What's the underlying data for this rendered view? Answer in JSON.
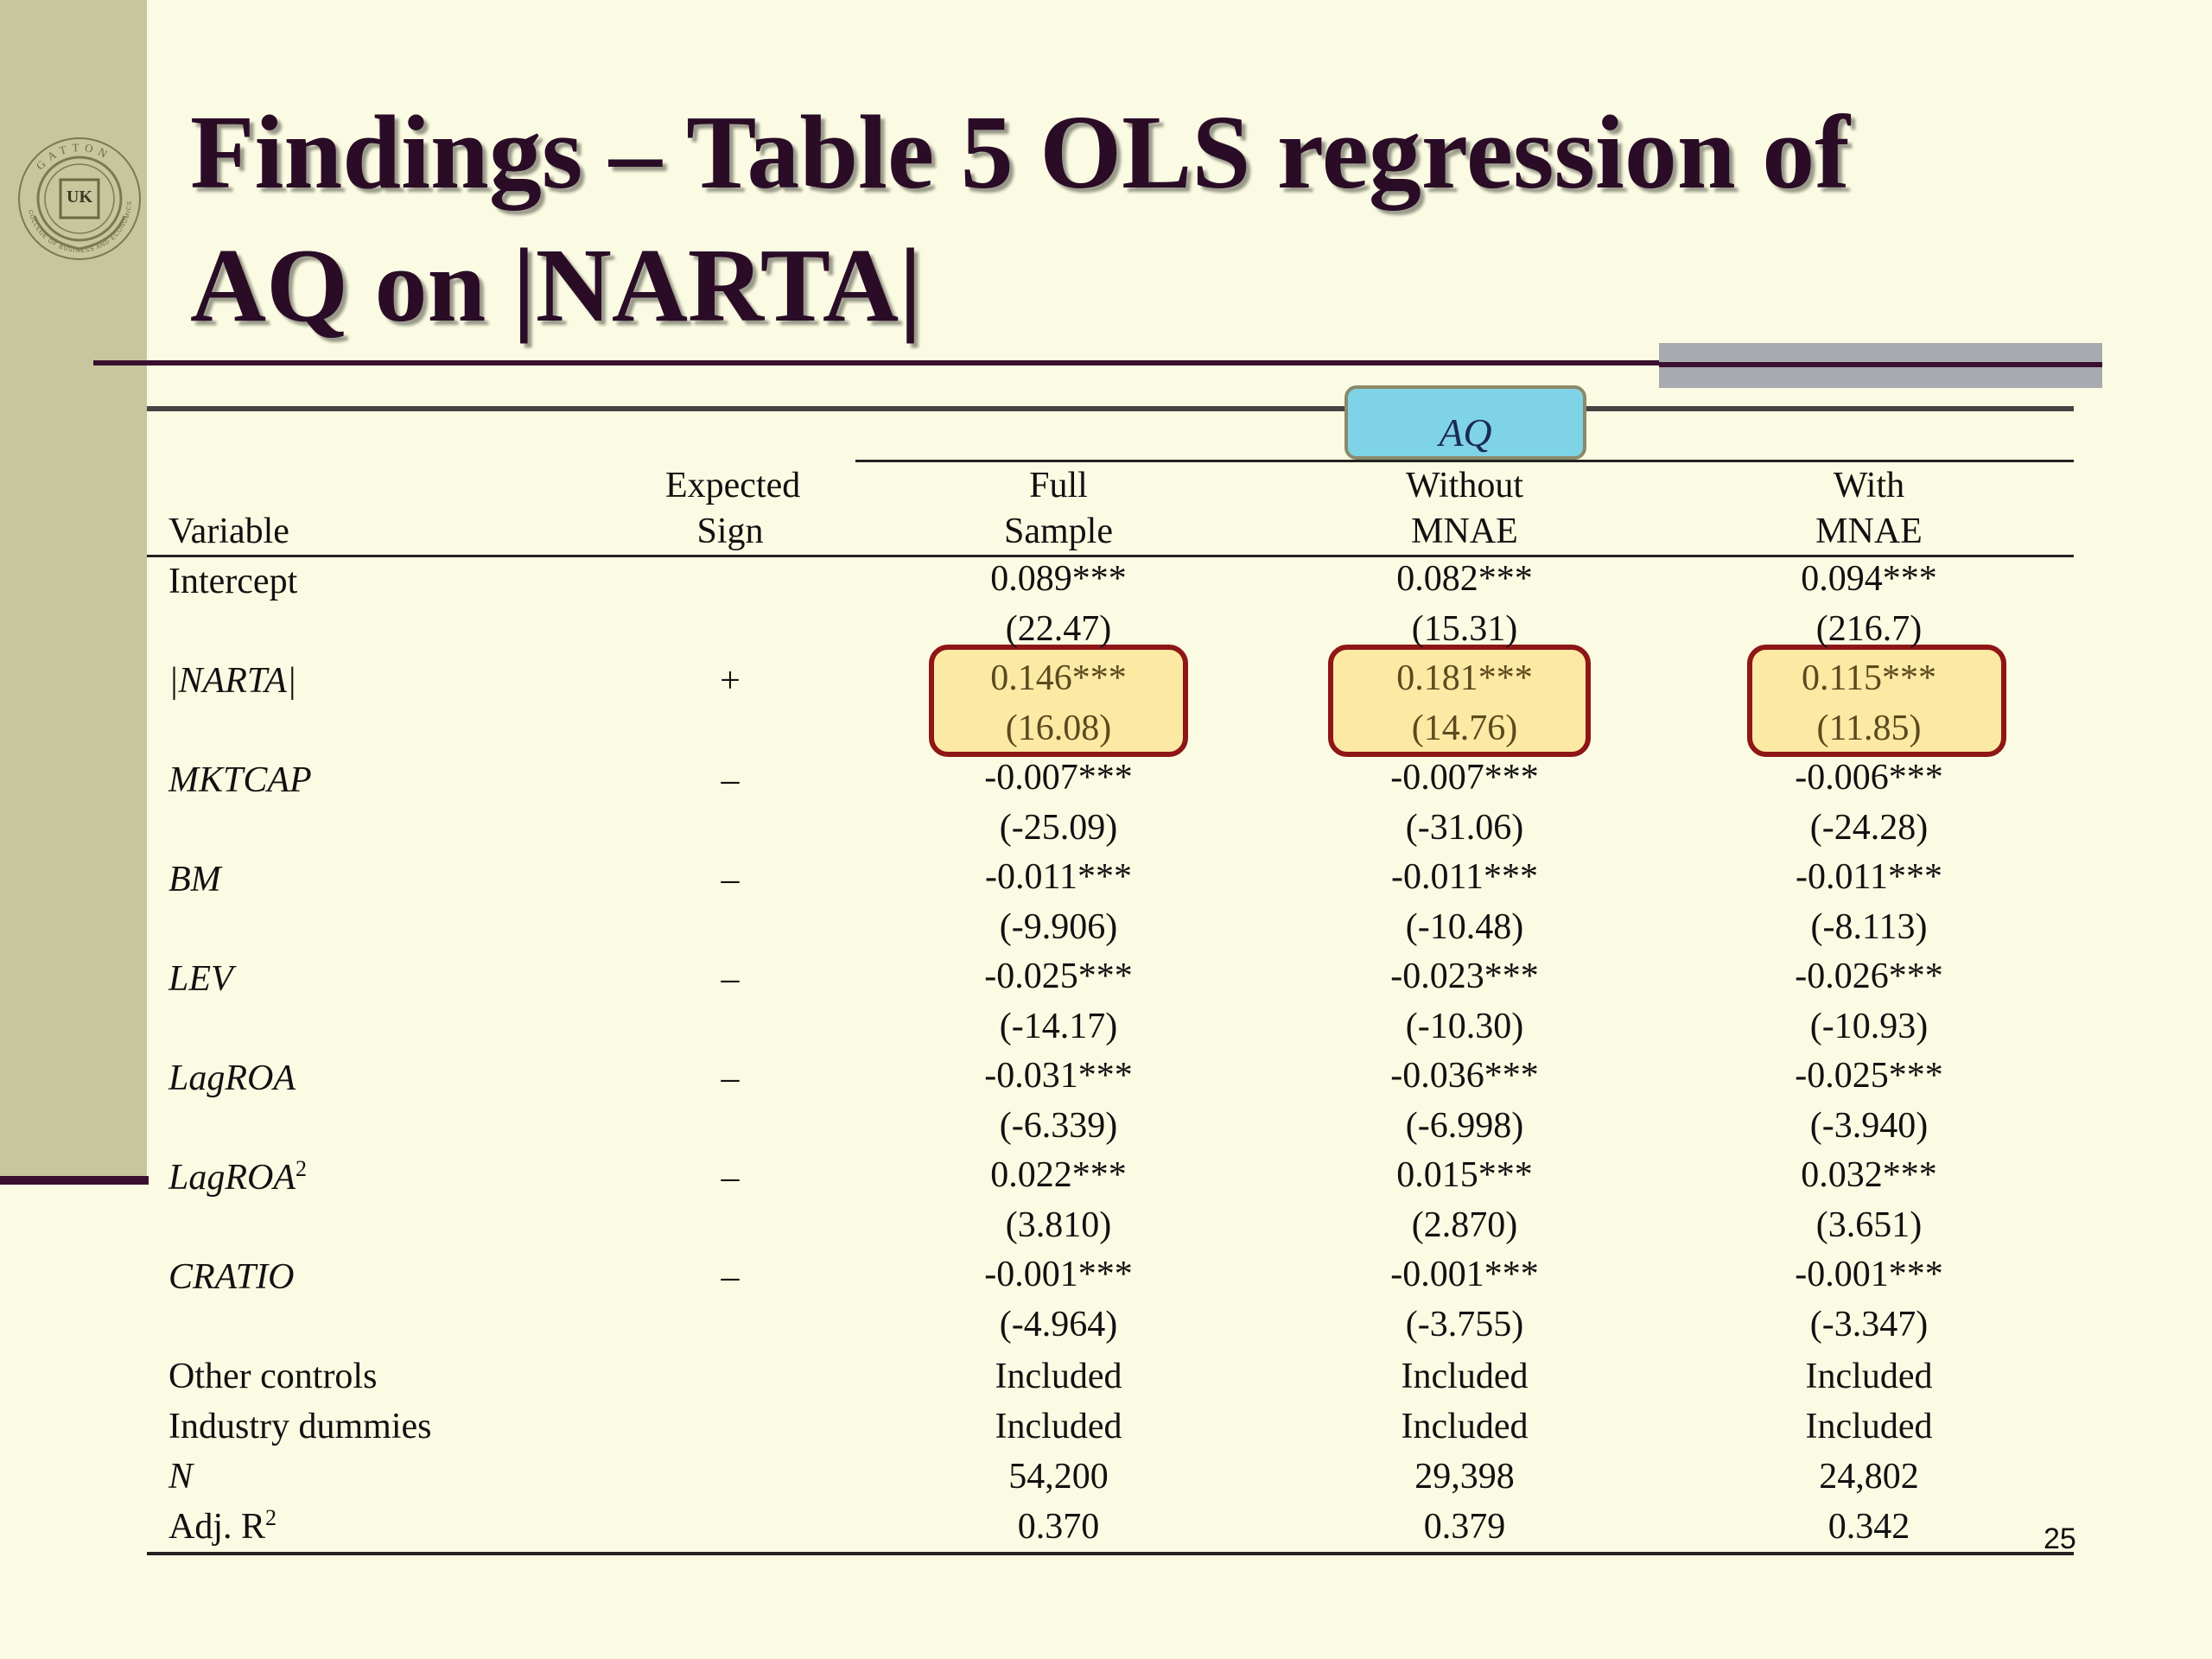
{
  "slide": {
    "title_line1": "Findings – Table 5 OLS regression of",
    "title_line2": "AQ on |NARTA|",
    "logo_top_text": "GATTON",
    "logo_ring_text": "COLLEGE OF BUSINESS AND ECONOMICS",
    "logo_center_text": "UK",
    "page_number": "25",
    "colors": {
      "background": "#fbfbe3",
      "sidebar": "#c8c69d",
      "title": "#2a0c27",
      "accent_line": "#3a0f30",
      "aq_highlight": "#7fd3e6",
      "cell_highlight": "#fce9a3",
      "cell_highlight_border": "#8e1616"
    }
  },
  "table": {
    "group_header": "AQ",
    "headers": {
      "variable": "Variable",
      "sign_line1": "Expected",
      "sign_line2": "Sign",
      "col1_line1": "Full",
      "col1_line2": "Sample",
      "col2_line1": "Without",
      "col2_line2": "MNAE",
      "col3_line1": "With",
      "col3_line2": "MNAE"
    },
    "rows": [
      {
        "variable": "Intercept",
        "sign": "",
        "coef": [
          "0.089***",
          "0.082***",
          "0.094***"
        ],
        "tstat": [
          "(22.47)",
          "(15.31)",
          "(216.7)"
        ]
      },
      {
        "variable": "|NARTA|",
        "sign": "+",
        "coef": [
          "0.146***",
          "0.181***",
          "0.115***"
        ],
        "tstat": [
          "(16.08)",
          "(14.76)",
          "(11.85)"
        ]
      },
      {
        "variable": "MKTCAP",
        "sign": "–",
        "coef": [
          "-0.007***",
          "-0.007***",
          "-0.006***"
        ],
        "tstat": [
          "(-25.09)",
          "(-31.06)",
          "(-24.28)"
        ]
      },
      {
        "variable": "BM",
        "sign": "–",
        "coef": [
          "-0.011***",
          "-0.011***",
          "-0.011***"
        ],
        "tstat": [
          "(-9.906)",
          "(-10.48)",
          "(-8.113)"
        ]
      },
      {
        "variable": "LEV",
        "sign": "–",
        "coef": [
          "-0.025***",
          "-0.023***",
          "-0.026***"
        ],
        "tstat": [
          "(-14.17)",
          "(-10.30)",
          "(-10.93)"
        ]
      },
      {
        "variable": "LagROA",
        "sign": "–",
        "coef": [
          "-0.031***",
          "-0.036***",
          "-0.025***"
        ],
        "tstat": [
          "(-6.339)",
          "(-6.998)",
          "(-3.940)"
        ]
      },
      {
        "variable": "LagROA",
        "variable_sup": "2",
        "sign": "–",
        "coef": [
          "0.022***",
          "0.015***",
          "0.032***"
        ],
        "tstat": [
          "(3.810)",
          "(2.870)",
          "(3.651)"
        ]
      },
      {
        "variable": "CRATIO",
        "sign": "–",
        "coef": [
          "-0.001***",
          "-0.001***",
          "-0.001***"
        ],
        "tstat": [
          "(-4.964)",
          "(-3.755)",
          "(-3.347)"
        ]
      }
    ],
    "footer_rows": [
      {
        "label": "Other controls",
        "values": [
          "Included",
          "Included",
          "Included"
        ]
      },
      {
        "label": "Industry dummies",
        "values": [
          "Included",
          "Included",
          "Included"
        ]
      },
      {
        "label": "N",
        "values": [
          "54,200",
          "29,398",
          "24,802"
        ]
      },
      {
        "label": "Adj. R",
        "label_sup": "2",
        "values": [
          "0.370",
          "0.379",
          "0.342"
        ]
      }
    ]
  }
}
